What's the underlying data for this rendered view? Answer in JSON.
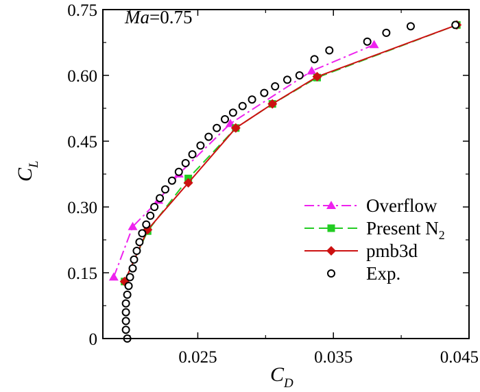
{
  "chart_data": {
    "type": "line",
    "annotation": {
      "var": "Ma",
      "value": "=0.75"
    },
    "xlabel": {
      "main": "C",
      "sub": "D"
    },
    "ylabel": {
      "main": "C",
      "sub": "L"
    },
    "xlim": [
      0.018,
      0.045
    ],
    "ylim": [
      0,
      0.75
    ],
    "xticks": [
      0.025,
      0.035,
      0.045
    ],
    "xtick_labels": [
      "0.025",
      "0.035",
      "0.045"
    ],
    "yticks": [
      0,
      0.15,
      0.3,
      0.45,
      0.6,
      0.75
    ],
    "ytick_labels": [
      "0",
      "0.15",
      "0.30",
      "0.45",
      "0.60",
      "0.75"
    ],
    "grid": false,
    "legend_position": "bottom-right",
    "series": [
      {
        "name": "Overflow",
        "name_sub": "",
        "color": "#ee22ee",
        "marker": "triangle",
        "line": "dashdot",
        "x": [
          0.0188,
          0.0202,
          0.0221,
          0.0236,
          0.0274,
          0.0334,
          0.038
        ],
        "y": [
          0.14,
          0.255,
          0.315,
          0.375,
          0.49,
          0.61,
          0.67
        ]
      },
      {
        "name": "Present N",
        "name_sub": "2",
        "color": "#22cc22",
        "marker": "square",
        "line": "dashed",
        "x": [
          0.0196,
          0.0213,
          0.0243,
          0.0278,
          0.0305,
          0.0338,
          0.0441
        ],
        "y": [
          0.13,
          0.245,
          0.365,
          0.48,
          0.535,
          0.595,
          0.715
        ]
      },
      {
        "name": "pmb3d",
        "name_sub": "",
        "color": "#cc1111",
        "marker": "diamond",
        "line": "solid",
        "x": [
          0.0196,
          0.0213,
          0.0243,
          0.0278,
          0.0305,
          0.0338,
          0.0441
        ],
        "y": [
          0.13,
          0.248,
          0.355,
          0.48,
          0.535,
          0.597,
          0.715
        ]
      },
      {
        "name": "Exp.",
        "name_sub": "",
        "color": "#000000",
        "marker": "circle",
        "line": "none",
        "x": [
          0.0198,
          0.0197,
          0.0197,
          0.0197,
          0.0197,
          0.0198,
          0.0199,
          0.02,
          0.0202,
          0.0203,
          0.0205,
          0.0207,
          0.0209,
          0.0212,
          0.0215,
          0.0218,
          0.0222,
          0.0226,
          0.0231,
          0.0236,
          0.0241,
          0.0246,
          0.0252,
          0.0258,
          0.0264,
          0.027,
          0.0276,
          0.0283,
          0.029,
          0.0299,
          0.0307,
          0.0316,
          0.0325,
          0.0336,
          0.0347,
          0.0375,
          0.0389,
          0.0407,
          0.044
        ],
        "y": [
          0.0,
          0.02,
          0.04,
          0.06,
          0.08,
          0.1,
          0.12,
          0.14,
          0.16,
          0.18,
          0.2,
          0.22,
          0.24,
          0.26,
          0.28,
          0.3,
          0.32,
          0.34,
          0.36,
          0.38,
          0.4,
          0.42,
          0.44,
          0.46,
          0.48,
          0.5,
          0.515,
          0.53,
          0.545,
          0.56,
          0.575,
          0.59,
          0.6,
          0.637,
          0.657,
          0.677,
          0.697,
          0.712,
          0.715
        ]
      }
    ]
  }
}
